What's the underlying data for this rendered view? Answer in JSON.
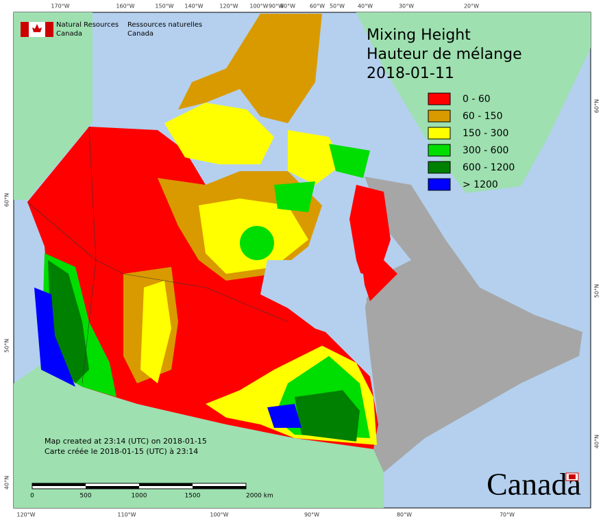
{
  "header": {
    "org_en_1": "Natural Resources",
    "org_en_2": "Canada",
    "org_fr_1": "Ressources naturelles",
    "org_fr_2": "Canada"
  },
  "title": {
    "line1": "Mixing Height",
    "line2": "Hauteur de mélange",
    "date": "2018-01-11"
  },
  "legend": [
    {
      "label": "0 - 60",
      "color": "#ff0000"
    },
    {
      "label": "60 - 150",
      "color": "#d99a00"
    },
    {
      "label": "150 - 300",
      "color": "#ffff00"
    },
    {
      "label": "300 - 600",
      "color": "#00dd00"
    },
    {
      "label": "600 - 1200",
      "color": "#008000"
    },
    {
      "label": "> 1200",
      "color": "#0000ff"
    }
  ],
  "graticule": {
    "top": [
      "170°W",
      "160°W",
      "150°W",
      "140°W",
      "120°W",
      "100°W",
      "90°W",
      "80°W",
      "60°W",
      "50°W",
      "40°W",
      "30°W",
      "20°W"
    ],
    "bottom": [
      "120°W",
      "110°W",
      "100°W",
      "90°W",
      "80°W",
      "70°W"
    ],
    "left": [
      "60°N",
      "50°N",
      "40°N"
    ],
    "right": [
      "60°N",
      "50°N",
      "40°N"
    ]
  },
  "footer": {
    "created_en": "Map created at 23:14 (UTC) on 2018-01-15",
    "created_fr": "Carte créée le 2018-01-15 (UTC) à 23:14"
  },
  "scale_bar": [
    "0",
    "500",
    "1000",
    "1500",
    "2000  km"
  ],
  "wordmark": "Canada"
}
